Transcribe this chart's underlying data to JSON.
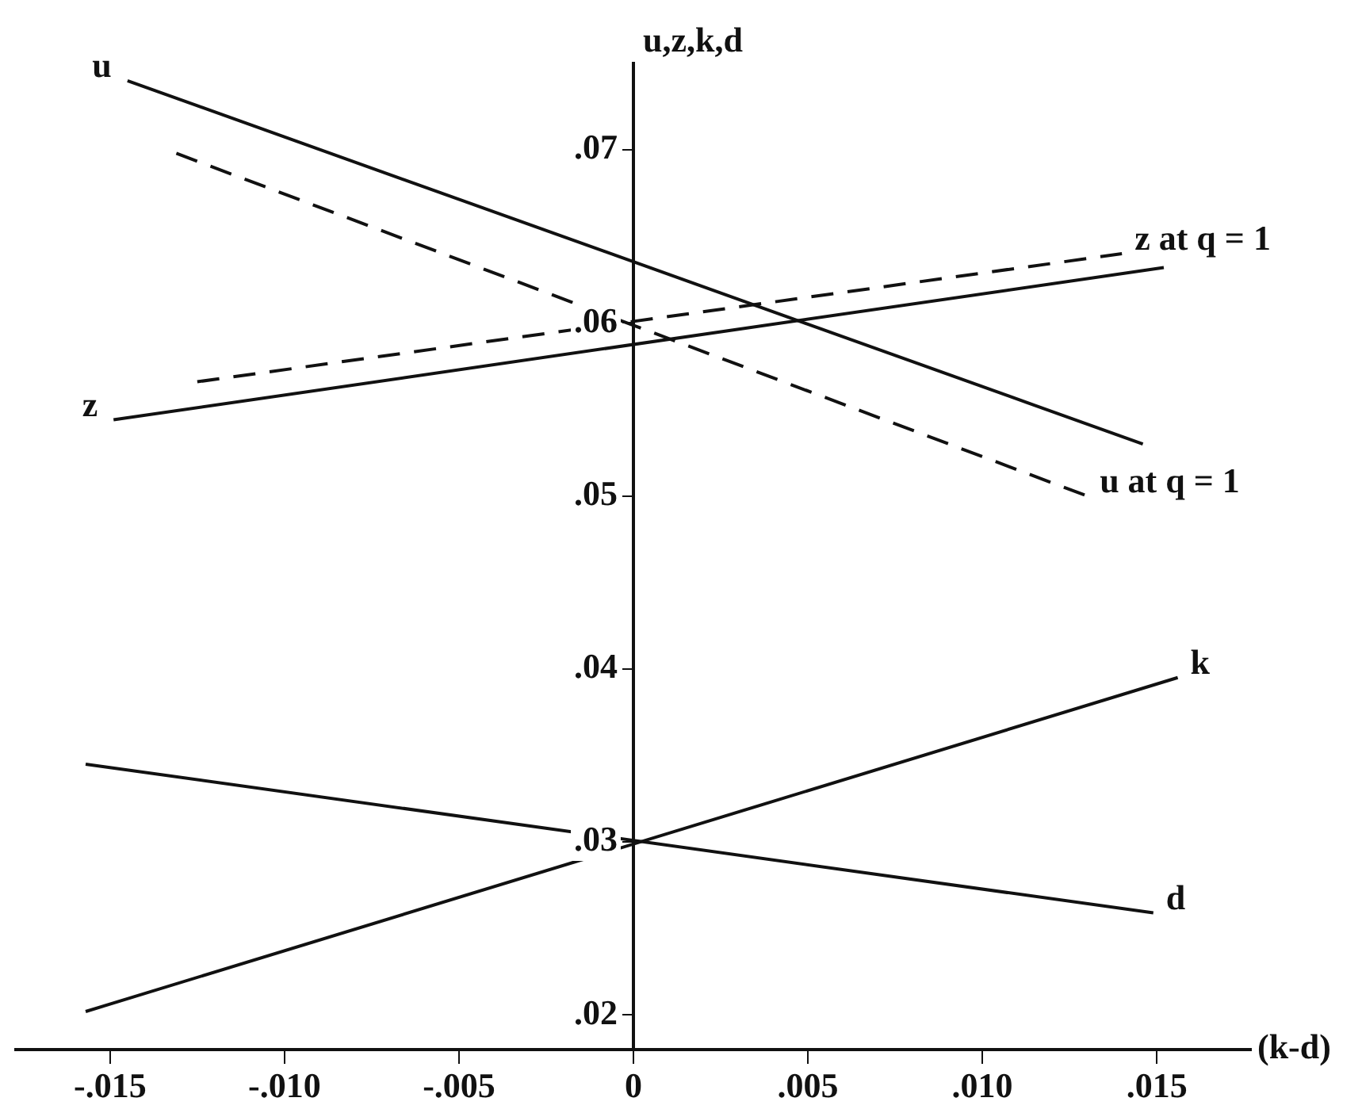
{
  "chart_data": {
    "type": "line",
    "xlabel": "(k-d)",
    "ylabel": "u,z,k,d",
    "xlim": [
      -0.0177,
      0.0177
    ],
    "ylim": [
      0.018,
      0.075
    ],
    "xticks": [
      {
        "value": -0.015,
        "label": "-.015"
      },
      {
        "value": -0.01,
        "label": "-.010"
      },
      {
        "value": -0.005,
        "label": "-.005"
      },
      0,
      {
        "value": 0.005,
        "label": ".005"
      },
      {
        "value": 0.01,
        "label": ".010"
      },
      {
        "value": 0.015,
        "label": ".015"
      }
    ],
    "yticks": [
      {
        "value": 0.02,
        "label": ".02"
      },
      {
        "value": 0.03,
        "label": ".03"
      },
      {
        "value": 0.04,
        "label": ".04"
      },
      {
        "value": 0.05,
        "label": ".05"
      },
      {
        "value": 0.06,
        "label": ".06"
      },
      {
        "value": 0.07,
        "label": ".07"
      }
    ],
    "grid": false,
    "legend": false,
    "marker": "none",
    "series": [
      {
        "name": "u",
        "color": "#111111",
        "line_style": "solid",
        "x": [
          0.0146,
          -0.0145
        ],
        "values": [
          0.053,
          0.074
        ]
      },
      {
        "name": "u at q = 1",
        "color": "#111111",
        "line_style": "dashed",
        "x": [
          -0.0131,
          0.013
        ],
        "values": [
          0.0698,
          0.05
        ]
      },
      {
        "name": "z",
        "color": "#111111",
        "line_style": "solid",
        "x": [
          0.0152,
          -0.0149
        ],
        "values": [
          0.0632,
          0.0544
        ]
      },
      {
        "name": "z at q = 1",
        "color": "#111111",
        "line_style": "dashed",
        "x": [
          -0.0125,
          0.014
        ],
        "values": [
          0.0566,
          0.064
        ]
      },
      {
        "name": "k",
        "color": "#111111",
        "line_style": "solid",
        "x": [
          -0.0157,
          0.0156
        ],
        "values": [
          0.0202,
          0.0395
        ]
      },
      {
        "name": "d",
        "color": "#111111",
        "line_style": "solid",
        "x": [
          -0.0157,
          0.0149
        ],
        "values": [
          0.0345,
          0.0259
        ]
      }
    ]
  }
}
